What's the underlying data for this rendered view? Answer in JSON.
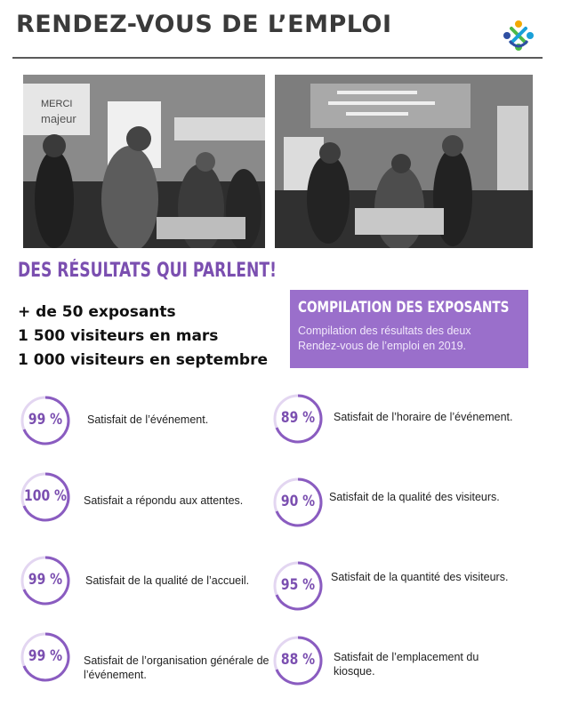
{
  "header": {
    "title": "RENDEZ-VOUS DE L’EMPLOI",
    "logo_icon": "people-circle-logo-icon"
  },
  "photos": [
    {
      "name": "event-photo-left",
      "signs": [
        "MERCI",
        "majeur"
      ]
    },
    {
      "name": "event-photo-right"
    }
  ],
  "results": {
    "heading": "DES RÉSULTATS QUI PARLENT!",
    "stats": [
      "+ de 50 exposants",
      "1 500 visiteurs en mars",
      "1 000 visiteurs en septembre"
    ]
  },
  "compilation": {
    "title": "COMPILATION DES EXPOSANTS",
    "text": "Compilation des résultats des deux Rendez-vous de l’emploi en 2019.",
    "color": "#9a6fcb"
  },
  "satisfaction": [
    {
      "percent": "99 %",
      "label": "Satisfait de l’événement."
    },
    {
      "percent": "89 %",
      "label": "Satisfait de l’horaire de l’événement."
    },
    {
      "percent": "100 %",
      "label": "Satisfait a répondu aux attentes."
    },
    {
      "percent": "90 %",
      "label": "Satisfait de la qualité des visiteurs."
    },
    {
      "percent": "99 %",
      "label": "Satisfait de la qualité de l’accueil."
    },
    {
      "percent": "95 %",
      "label": "Satisfait de la quantité des visiteurs."
    },
    {
      "percent": "99 %",
      "label": "Satisfait de l’organisation générale de l’événement."
    },
    {
      "percent": "88 %",
      "label": "Satisfait de l’emplacement du kiosque."
    }
  ],
  "accent_color": "#7b4fb0"
}
